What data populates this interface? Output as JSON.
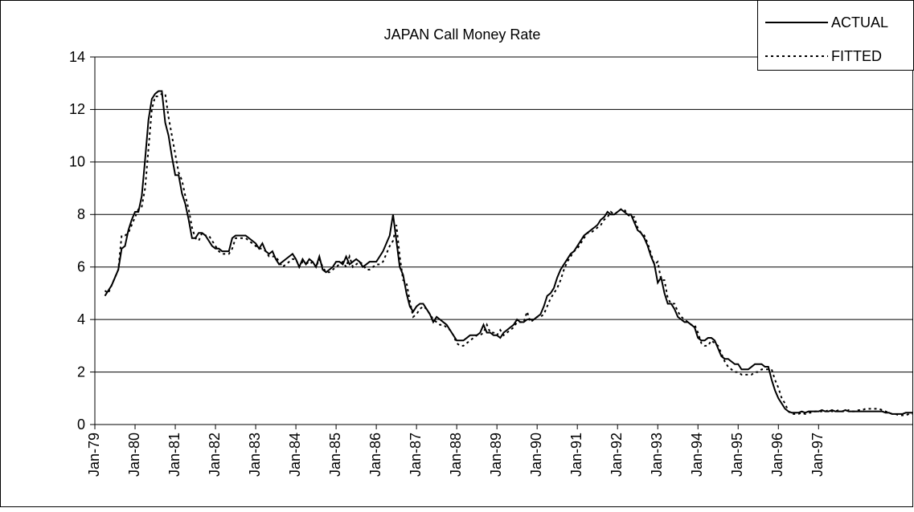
{
  "chart_data": {
    "type": "line",
    "title": "JAPAN Call Money Rate",
    "categories": [
      "Jan-79",
      null,
      null,
      null,
      null,
      null,
      null,
      null,
      null,
      null,
      null,
      null,
      "Jan-80",
      null,
      null,
      null,
      null,
      null,
      null,
      null,
      null,
      null,
      null,
      null,
      "Jan-81",
      null,
      null,
      null,
      null,
      null,
      null,
      null,
      null,
      null,
      null,
      null,
      "Jan-82",
      null,
      null,
      null,
      null,
      null,
      null,
      null,
      null,
      null,
      null,
      null,
      "Jan-83",
      null,
      null,
      null,
      null,
      null,
      null,
      null,
      null,
      null,
      null,
      null,
      "Jan-84",
      null,
      null,
      null,
      null,
      null,
      null,
      null,
      null,
      null,
      null,
      null,
      "Jan-85",
      null,
      null,
      null,
      null,
      null,
      null,
      null,
      null,
      null,
      null,
      null,
      "Jan-86",
      null,
      null,
      null,
      null,
      null,
      null,
      null,
      null,
      null,
      null,
      null,
      "Jan-87",
      null,
      null,
      null,
      null,
      null,
      null,
      null,
      null,
      null,
      null,
      null,
      "Jan-88",
      null,
      null,
      null,
      null,
      null,
      null,
      null,
      null,
      null,
      null,
      null,
      "Jan-89",
      null,
      null,
      null,
      null,
      null,
      null,
      null,
      null,
      null,
      null,
      null,
      "Jan-90",
      null,
      null,
      null,
      null,
      null,
      null,
      null,
      null,
      null,
      null,
      null,
      "Jan-91",
      null,
      null,
      null,
      null,
      null,
      null,
      null,
      null,
      null,
      null,
      null,
      "Jan-92",
      null,
      null,
      null,
      null,
      null,
      null,
      null,
      null,
      null,
      null,
      null,
      "Jan-93",
      null,
      null,
      null,
      null,
      null,
      null,
      null,
      null,
      null,
      null,
      null,
      "Jan-94",
      null,
      null,
      null,
      null,
      null,
      null,
      null,
      null,
      null,
      null,
      null,
      "Jan-95",
      null,
      null,
      null,
      null,
      null,
      null,
      null,
      null,
      null,
      null,
      null,
      "Jan-96",
      null,
      null,
      null,
      null,
      null,
      null,
      null,
      null,
      null,
      null,
      null,
      "Jan-97",
      null,
      null,
      null,
      null,
      null,
      null,
      null,
      null,
      null,
      null,
      null,
      null,
      null,
      null,
      null,
      null,
      null,
      null,
      null,
      null,
      null,
      null,
      null,
      null,
      null,
      null,
      null,
      null
    ],
    "series": [
      {
        "name": "ACTUAL",
        "color": "#000000",
        "dash": "solid",
        "values": [
          null,
          null,
          null,
          4.9,
          5.1,
          5.3,
          5.6,
          5.9,
          6.7,
          6.8,
          7.4,
          7.8,
          8.1,
          8.1,
          8.7,
          10.1,
          11.6,
          12.4,
          12.6,
          12.7,
          12.7,
          11.5,
          11.0,
          10.2,
          9.5,
          9.5,
          8.8,
          8.4,
          7.8,
          7.1,
          7.1,
          7.3,
          7.3,
          7.2,
          7.0,
          6.8,
          6.7,
          6.7,
          6.6,
          6.6,
          6.6,
          7.1,
          7.2,
          7.2,
          7.2,
          7.2,
          7.1,
          7.0,
          6.9,
          6.7,
          6.9,
          6.6,
          6.5,
          6.6,
          6.3,
          6.1,
          6.2,
          6.3,
          6.4,
          6.5,
          6.3,
          6.0,
          6.3,
          6.1,
          6.3,
          6.2,
          6.0,
          6.4,
          5.9,
          5.8,
          5.9,
          6.0,
          6.2,
          6.2,
          6.1,
          6.4,
          6.1,
          6.2,
          6.3,
          6.2,
          6.0,
          6.1,
          6.2,
          6.2,
          6.2,
          6.4,
          6.6,
          6.9,
          7.2,
          8.0,
          7.0,
          6.0,
          5.7,
          5.0,
          4.5,
          4.3,
          4.5,
          4.6,
          4.6,
          4.4,
          4.2,
          3.9,
          4.1,
          4.0,
          3.9,
          3.8,
          3.6,
          3.4,
          3.2,
          3.2,
          3.2,
          3.3,
          3.4,
          3.4,
          3.4,
          3.5,
          3.8,
          3.5,
          3.5,
          3.4,
          3.4,
          3.3,
          3.5,
          3.6,
          3.7,
          3.8,
          4.0,
          3.9,
          3.9,
          4.0,
          4.0,
          4.0,
          4.1,
          4.2,
          4.5,
          4.9,
          5.0,
          5.2,
          5.6,
          5.9,
          6.1,
          6.3,
          6.5,
          6.6,
          6.8,
          7.0,
          7.2,
          7.3,
          7.4,
          7.5,
          7.6,
          7.8,
          7.9,
          8.1,
          8.0,
          8.0,
          8.1,
          8.2,
          8.1,
          8.0,
          8.0,
          7.7,
          7.4,
          7.3,
          7.1,
          6.8,
          6.4,
          6.1,
          5.4,
          5.6,
          5.0,
          4.6,
          4.6,
          4.4,
          4.1,
          4.0,
          3.9,
          3.9,
          3.8,
          3.7,
          3.3,
          3.2,
          3.2,
          3.3,
          3.3,
          3.2,
          2.9,
          2.6,
          2.5,
          2.5,
          2.4,
          2.3,
          2.3,
          2.1,
          2.1,
          2.1,
          2.2,
          2.3,
          2.3,
          2.3,
          2.2,
          2.2,
          1.7,
          1.3,
          1.0,
          0.8,
          0.6,
          0.5,
          0.45,
          0.45,
          0.45,
          0.5,
          0.45,
          0.5,
          0.5,
          0.5,
          0.5,
          0.55,
          0.5,
          0.5,
          0.55,
          0.5,
          0.5,
          0.5,
          0.55,
          0.5,
          0.5,
          0.5,
          0.5,
          0.5,
          0.5,
          0.5,
          0.5,
          0.5,
          0.5,
          0.5,
          0.45,
          0.45,
          0.4,
          0.4,
          0.4,
          0.4,
          0.45,
          0.45,
          0.45
        ]
      },
      {
        "name": "FITTED",
        "color": "#000000",
        "dash": "dotted",
        "values": [
          null,
          null,
          null,
          5.1,
          5.0,
          5.3,
          5.6,
          5.9,
          7.2,
          7.2,
          7.3,
          7.6,
          7.9,
          8.2,
          8.3,
          9.0,
          10.5,
          12.0,
          12.5,
          12.5,
          12.6,
          12.6,
          11.7,
          11.0,
          10.3,
          9.6,
          9.3,
          8.7,
          8.2,
          7.5,
          7.1,
          7.0,
          7.3,
          7.2,
          7.2,
          7.0,
          6.8,
          6.6,
          6.5,
          6.5,
          6.5,
          6.7,
          7.1,
          7.1,
          7.1,
          7.1,
          7.0,
          6.9,
          6.8,
          6.7,
          6.7,
          6.6,
          6.4,
          6.4,
          6.4,
          6.2,
          6.0,
          6.1,
          6.2,
          6.3,
          6.3,
          6.0,
          6.2,
          6.2,
          6.1,
          6.2,
          6.0,
          6.3,
          6.0,
          5.8,
          5.8,
          5.9,
          6.0,
          6.1,
          6.2,
          6.0,
          6.4,
          6.0,
          6.1,
          6.2,
          6.1,
          5.9,
          5.9,
          6.0,
          6.1,
          6.1,
          6.2,
          6.5,
          6.8,
          7.0,
          7.6,
          6.4,
          5.5,
          5.4,
          4.7,
          4.1,
          4.2,
          4.4,
          4.5,
          4.4,
          4.2,
          4.0,
          3.9,
          3.8,
          3.8,
          3.7,
          3.6,
          3.4,
          3.1,
          3.0,
          3.0,
          3.1,
          3.2,
          3.3,
          3.4,
          3.4,
          3.5,
          3.8,
          3.5,
          3.5,
          3.4,
          3.6,
          3.4,
          3.5,
          3.6,
          3.7,
          3.9,
          3.9,
          3.9,
          4.3,
          3.9,
          4.0,
          4.1,
          4.1,
          4.2,
          4.5,
          4.8,
          5.0,
          5.2,
          5.5,
          5.9,
          6.2,
          6.4,
          6.6,
          6.7,
          6.9,
          7.1,
          7.3,
          7.3,
          7.4,
          7.5,
          7.6,
          7.8,
          7.9,
          8.1,
          8.0,
          8.1,
          8.2,
          8.2,
          8.0,
          7.9,
          7.9,
          7.5,
          7.3,
          7.2,
          6.9,
          6.5,
          6.1,
          6.2,
          5.5,
          5.5,
          4.8,
          4.6,
          4.6,
          4.3,
          4.1,
          4.0,
          3.9,
          3.8,
          3.8,
          3.5,
          3.1,
          3.0,
          3.0,
          3.2,
          3.1,
          3.0,
          2.7,
          2.4,
          2.2,
          2.1,
          2.0,
          2.0,
          1.9,
          1.9,
          1.9,
          1.9,
          2.0,
          2.0,
          2.1,
          2.1,
          2.1,
          2.1,
          1.7,
          1.4,
          1.0,
          0.8,
          0.5,
          0.4,
          0.4,
          0.4,
          0.45,
          0.4,
          0.45,
          0.45,
          0.5,
          0.5,
          0.5,
          0.5,
          0.55,
          0.5,
          0.5,
          0.55,
          0.5,
          0.5,
          0.55,
          0.5,
          0.5,
          0.55,
          0.55,
          0.6,
          0.6,
          0.6,
          0.6,
          0.6,
          0.55,
          0.5,
          0.45,
          0.4,
          0.4,
          0.35,
          0.35,
          0.35,
          0.4,
          0.4
        ]
      }
    ],
    "ylim": [
      0,
      14
    ],
    "yticks": [
      0,
      2,
      4,
      6,
      8,
      10,
      12,
      14
    ],
    "grid": true,
    "legend": "top-right"
  }
}
